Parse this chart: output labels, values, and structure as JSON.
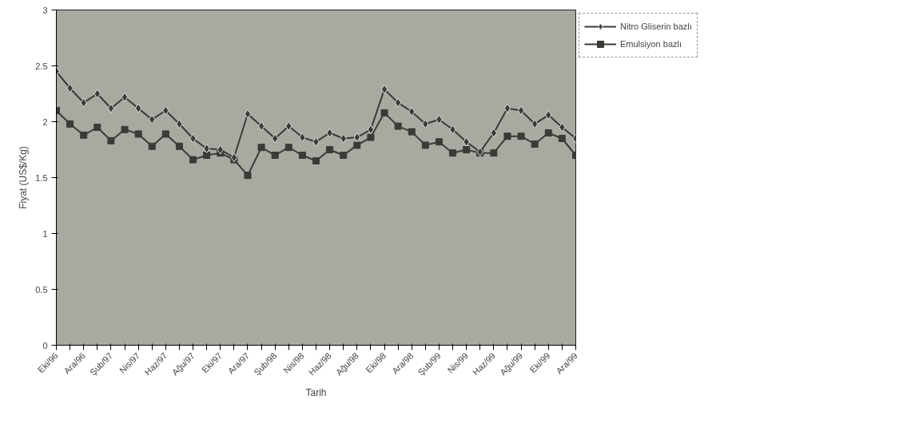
{
  "chart_data": {
    "type": "line",
    "xlabel": "Tarih",
    "ylabel": "Fiyat (US$/Kg)",
    "categories": [
      "Eki/96",
      null,
      "Ara/96",
      null,
      "Şub/97",
      null,
      "Nis/97",
      null,
      "Haz/97",
      null,
      "Ağu/97",
      null,
      "Eki/97",
      null,
      "Ara/97",
      null,
      "Şub/98",
      null,
      "Nis/98",
      null,
      "Haz/98",
      null,
      "Ağu/98",
      null,
      "Eki/98",
      null,
      "Ara/98",
      null,
      "Şub/99",
      null,
      "Nis/99",
      null,
      "Haz/99",
      null,
      "Ağu/99",
      null,
      "Eki/99",
      null,
      "Ara/99"
    ],
    "series": [
      {
        "name": "Nitro Gliserin bazlı",
        "color": "#3a3a36",
        "marker": "diamond",
        "values": [
          2.45,
          2.3,
          2.17,
          2.25,
          2.12,
          2.22,
          2.12,
          2.02,
          2.1,
          1.98,
          1.85,
          1.76,
          1.75,
          1.68,
          2.07,
          1.96,
          1.85,
          1.96,
          1.86,
          1.82,
          1.9,
          1.85,
          1.86,
          1.93,
          2.29,
          2.17,
          2.09,
          1.98,
          2.02,
          1.93,
          1.82,
          1.73,
          1.9,
          2.12,
          2.1,
          1.98,
          2.06,
          1.95,
          1.85
        ]
      },
      {
        "name": "Emulsiyon bazlı",
        "color": "#3a3a36",
        "marker": "square",
        "values": [
          2.1,
          1.98,
          1.88,
          1.95,
          1.83,
          1.93,
          1.89,
          1.78,
          1.89,
          1.78,
          1.66,
          1.7,
          1.72,
          1.66,
          1.52,
          1.77,
          1.7,
          1.77,
          1.7,
          1.65,
          1.75,
          1.7,
          1.79,
          1.86,
          2.08,
          1.96,
          1.91,
          1.79,
          1.82,
          1.72,
          1.75,
          1.72,
          1.72,
          1.87,
          1.87,
          1.8,
          1.9,
          1.85,
          1.7
        ]
      }
    ],
    "ylim": [
      0,
      3
    ],
    "yticks": [
      0,
      0.5,
      1,
      1.5,
      2,
      2.5,
      3
    ],
    "legend": "right"
  }
}
